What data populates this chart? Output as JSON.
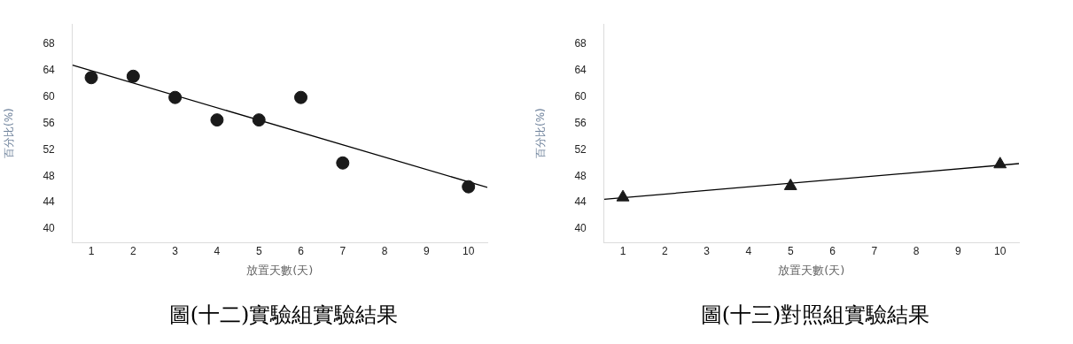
{
  "chart_data": [
    {
      "type": "scatter",
      "title": "圖(十二)實驗組實驗結果",
      "xlabel": "放置天數(天)",
      "ylabel": "百分比(%)",
      "xlim": [
        0.55,
        10.45
      ],
      "xticks": [
        1,
        2,
        3,
        4,
        5,
        6,
        7,
        8,
        9,
        10
      ],
      "ylim": [
        38,
        71
      ],
      "yticks": [
        40,
        44,
        48,
        52,
        56,
        60,
        64,
        68
      ],
      "grid": false,
      "series": [
        {
          "x": [
            1,
            2,
            3,
            4,
            5,
            6,
            7,
            10
          ],
          "values": [
            62.9,
            63.1,
            59.9,
            56.5,
            56.5,
            59.9,
            50,
            46.4
          ],
          "color": "#1a1a1a",
          "marker": "circle"
        },
        {
          "type": "line",
          "x": [
            0.55,
            10.45
          ],
          "values": [
            64.8,
            46.3
          ],
          "color": "#000000",
          "marker": "none"
        }
      ]
    },
    {
      "type": "scatter",
      "title": "圖(十三)對照組實驗結果",
      "xlabel": "放置天數(天)",
      "ylabel": "百分比(%)",
      "xlim": [
        0.55,
        10.45
      ],
      "xticks": [
        1,
        2,
        3,
        4,
        5,
        6,
        7,
        8,
        9,
        10
      ],
      "ylim": [
        38,
        71
      ],
      "yticks": [
        40,
        44,
        48,
        52,
        56,
        60,
        64,
        68
      ],
      "grid": false,
      "series": [
        {
          "x": [
            1,
            5,
            10
          ],
          "values": [
            44.8,
            46.5,
            49.8
          ],
          "color": "#1a1a1a",
          "marker": "triangle"
        },
        {
          "type": "line",
          "x": [
            0.55,
            10.45
          ],
          "values": [
            44.5,
            49.9
          ],
          "color": "#000000",
          "marker": "none"
        }
      ]
    }
  ]
}
